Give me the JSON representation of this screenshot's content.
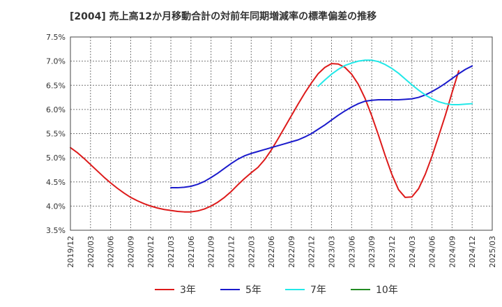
{
  "title": "[2004]  売上高12か月移動合計の対前年同期増減率の標準偏差の推移",
  "chart_data": {
    "type": "line",
    "title": "[2004]  売上高12か月移動合計の対前年同期増減率の標準偏差の推移",
    "xlabel": "",
    "ylabel": "",
    "x_ticks": [
      "2019/12",
      "2020/03",
      "2020/06",
      "2020/09",
      "2020/12",
      "2021/03",
      "2021/06",
      "2021/09",
      "2021/12",
      "2022/03",
      "2022/06",
      "2022/09",
      "2022/12",
      "2023/03",
      "2023/06",
      "2023/09",
      "2023/12",
      "2024/03",
      "2024/06",
      "2024/09",
      "2024/12",
      "2025/03"
    ],
    "y_ticks": [
      "3.5%",
      "4.0%",
      "4.5%",
      "5.0%",
      "5.5%",
      "6.0%",
      "6.5%",
      "7.0%",
      "7.5%"
    ],
    "ylim": [
      3.5,
      7.5
    ],
    "grid": true,
    "legend_position": "bottom",
    "series": [
      {
        "name": "3年",
        "color": "#dd1a1a",
        "points": [
          [
            "2019/12",
            5.21
          ],
          [
            "2020/01",
            5.11
          ],
          [
            "2020/02",
            4.99
          ],
          [
            "2020/03",
            4.86
          ],
          [
            "2020/04",
            4.73
          ],
          [
            "2020/05",
            4.6
          ],
          [
            "2020/06",
            4.48
          ],
          [
            "2020/07",
            4.37
          ],
          [
            "2020/08",
            4.27
          ],
          [
            "2020/09",
            4.18
          ],
          [
            "2020/10",
            4.11
          ],
          [
            "2020/11",
            4.05
          ],
          [
            "2020/12",
            4.0
          ],
          [
            "2021/01",
            3.96
          ],
          [
            "2021/02",
            3.93
          ],
          [
            "2021/03",
            3.91
          ],
          [
            "2021/04",
            3.89
          ],
          [
            "2021/05",
            3.88
          ],
          [
            "2021/06",
            3.88
          ],
          [
            "2021/07",
            3.9
          ],
          [
            "2021/08",
            3.94
          ],
          [
            "2021/09",
            4.0
          ],
          [
            "2021/10",
            4.08
          ],
          [
            "2021/11",
            4.18
          ],
          [
            "2021/12",
            4.3
          ],
          [
            "2022/01",
            4.44
          ],
          [
            "2022/02",
            4.57
          ],
          [
            "2022/03",
            4.69
          ],
          [
            "2022/04",
            4.8
          ],
          [
            "2022/05",
            4.96
          ],
          [
            "2022/06",
            5.16
          ],
          [
            "2022/07",
            5.39
          ],
          [
            "2022/08",
            5.63
          ],
          [
            "2022/09",
            5.87
          ],
          [
            "2022/10",
            6.11
          ],
          [
            "2022/11",
            6.34
          ],
          [
            "2022/12",
            6.55
          ],
          [
            "2023/01",
            6.74
          ],
          [
            "2023/02",
            6.87
          ],
          [
            "2023/03",
            6.95
          ],
          [
            "2023/04",
            6.94
          ],
          [
            "2023/05",
            6.87
          ],
          [
            "2023/06",
            6.73
          ],
          [
            "2023/07",
            6.52
          ],
          [
            "2023/08",
            6.23
          ],
          [
            "2023/09",
            5.87
          ],
          [
            "2023/10",
            5.47
          ],
          [
            "2023/11",
            5.05
          ],
          [
            "2023/12",
            4.66
          ],
          [
            "2024/01",
            4.34
          ],
          [
            "2024/02",
            4.18
          ],
          [
            "2024/03",
            4.19
          ],
          [
            "2024/04",
            4.36
          ],
          [
            "2024/05",
            4.66
          ],
          [
            "2024/06",
            5.03
          ],
          [
            "2024/07",
            5.45
          ],
          [
            "2024/08",
            5.88
          ],
          [
            "2024/09",
            6.35
          ],
          [
            "2024/10",
            6.8
          ]
        ]
      },
      {
        "name": "5年",
        "color": "#1a1acc",
        "points": [
          [
            "2021/03",
            4.38
          ],
          [
            "2021/04",
            4.38
          ],
          [
            "2021/05",
            4.39
          ],
          [
            "2021/06",
            4.41
          ],
          [
            "2021/07",
            4.45
          ],
          [
            "2021/08",
            4.51
          ],
          [
            "2021/09",
            4.59
          ],
          [
            "2021/10",
            4.68
          ],
          [
            "2021/11",
            4.78
          ],
          [
            "2021/12",
            4.88
          ],
          [
            "2022/01",
            4.97
          ],
          [
            "2022/02",
            5.04
          ],
          [
            "2022/03",
            5.09
          ],
          [
            "2022/04",
            5.13
          ],
          [
            "2022/05",
            5.17
          ],
          [
            "2022/06",
            5.21
          ],
          [
            "2022/07",
            5.25
          ],
          [
            "2022/08",
            5.29
          ],
          [
            "2022/09",
            5.33
          ],
          [
            "2022/10",
            5.37
          ],
          [
            "2022/11",
            5.43
          ],
          [
            "2022/12",
            5.5
          ],
          [
            "2023/01",
            5.59
          ],
          [
            "2023/02",
            5.68
          ],
          [
            "2023/03",
            5.78
          ],
          [
            "2023/04",
            5.88
          ],
          [
            "2023/05",
            5.97
          ],
          [
            "2023/06",
            6.05
          ],
          [
            "2023/07",
            6.12
          ],
          [
            "2023/08",
            6.17
          ],
          [
            "2023/09",
            6.19
          ],
          [
            "2023/10",
            6.2
          ],
          [
            "2023/11",
            6.2
          ],
          [
            "2023/12",
            6.2
          ],
          [
            "2024/01",
            6.2
          ],
          [
            "2024/02",
            6.21
          ],
          [
            "2024/03",
            6.22
          ],
          [
            "2024/04",
            6.25
          ],
          [
            "2024/05",
            6.3
          ],
          [
            "2024/06",
            6.37
          ],
          [
            "2024/07",
            6.45
          ],
          [
            "2024/08",
            6.54
          ],
          [
            "2024/09",
            6.64
          ],
          [
            "2024/10",
            6.74
          ],
          [
            "2024/11",
            6.83
          ],
          [
            "2024/12",
            6.9
          ]
        ]
      },
      {
        "name": "7年",
        "color": "#22e8e8",
        "points": [
          [
            "2023/01",
            6.48
          ],
          [
            "2023/02",
            6.61
          ],
          [
            "2023/03",
            6.73
          ],
          [
            "2023/04",
            6.83
          ],
          [
            "2023/05",
            6.91
          ],
          [
            "2023/06",
            6.96
          ],
          [
            "2023/07",
            7.0
          ],
          [
            "2023/08",
            7.02
          ],
          [
            "2023/09",
            7.02
          ],
          [
            "2023/10",
            6.99
          ],
          [
            "2023/11",
            6.93
          ],
          [
            "2023/12",
            6.85
          ],
          [
            "2024/01",
            6.75
          ],
          [
            "2024/02",
            6.63
          ],
          [
            "2024/03",
            6.51
          ],
          [
            "2024/04",
            6.4
          ],
          [
            "2024/05",
            6.3
          ],
          [
            "2024/06",
            6.22
          ],
          [
            "2024/07",
            6.16
          ],
          [
            "2024/08",
            6.12
          ],
          [
            "2024/09",
            6.1
          ],
          [
            "2024/10",
            6.1
          ],
          [
            "2024/11",
            6.11
          ],
          [
            "2024/12",
            6.12
          ]
        ]
      },
      {
        "name": "10年",
        "color": "#228b22",
        "points": []
      }
    ]
  }
}
